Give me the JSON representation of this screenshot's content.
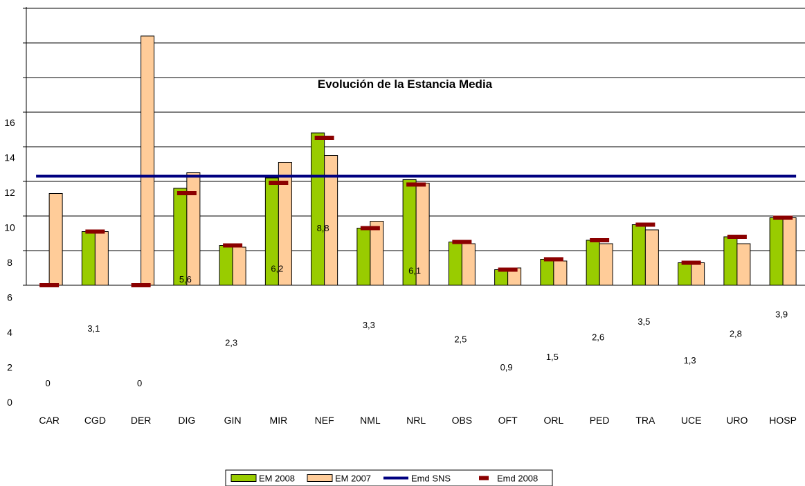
{
  "chart_data": {
    "type": "bar",
    "title": "Evolución de la Estancia Media",
    "xlabel": "",
    "ylabel": "",
    "y_tick_labels": [
      "0",
      "2",
      "4",
      "6",
      "8",
      "10",
      "12",
      "14",
      "16"
    ],
    "grid": true,
    "legend_position": "bottom",
    "categories": [
      "CAR",
      "CGD",
      "DER",
      "DIG",
      "GIN",
      "MIR",
      "NEF",
      "NML",
      "NRL",
      "OBS",
      "OFT",
      "ORL",
      "PED",
      "TRA",
      "UCE",
      "URO",
      "HOSP"
    ],
    "series": [
      {
        "name": "EM 2008",
        "type": "bar",
        "color": "#99cc00",
        "values": [
          0,
          3.1,
          0,
          5.6,
          2.3,
          6.2,
          8.8,
          3.3,
          6.1,
          2.5,
          0.9,
          1.5,
          2.6,
          3.5,
          1.3,
          2.8,
          3.9
        ]
      },
      {
        "name": "EM 2007",
        "type": "bar",
        "color": "#ffcc99",
        "values": [
          5.3,
          3.1,
          14.4,
          6.5,
          2.2,
          7.1,
          7.5,
          3.7,
          5.9,
          2.4,
          1.0,
          1.4,
          2.4,
          3.2,
          1.3,
          2.4,
          3.9
        ]
      },
      {
        "name": "Emd SNS",
        "type": "line",
        "color": "#000080",
        "values": [
          6.1,
          6.1,
          6.1,
          6.1,
          6.1,
          6.1,
          6.1,
          6.1,
          6.1,
          6.1,
          6.1,
          6.1,
          6.1,
          6.1,
          6.1,
          6.1,
          6.1
        ]
      },
      {
        "name": "Emd 2008",
        "type": "marker",
        "color": "#8b0000",
        "values": [
          0,
          3.1,
          0,
          5.6,
          2.3,
          6.2,
          8.8,
          3.3,
          6.1,
          2.5,
          0.9,
          1.5,
          2.6,
          3.5,
          1.3,
          2.8,
          3.9
        ]
      }
    ],
    "data_labels": [
      "0",
      "3,1",
      "0",
      "5,6",
      "2,3",
      "6,2",
      "8,8",
      "3,3",
      "6,1",
      "2,5",
      "0,9",
      "1,5",
      "2,6",
      "3,5",
      "1,3",
      "2,8",
      "3,9"
    ]
  }
}
